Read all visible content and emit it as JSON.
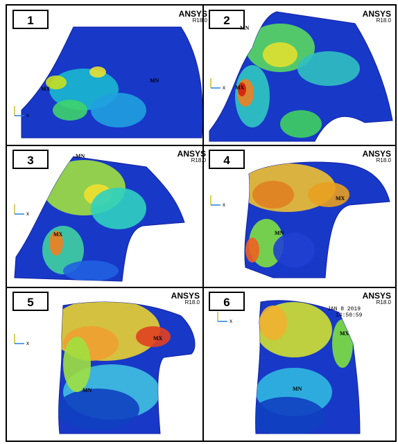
{
  "panels": [
    {
      "label": "1",
      "brand": "ANSYS",
      "version": "R18.0",
      "markers": [
        "MX",
        "MN"
      ],
      "axis": "x"
    },
    {
      "label": "2",
      "brand": "ANSYS",
      "version": "R18.0",
      "markers": [
        "MN",
        "MX"
      ],
      "axis": "x"
    },
    {
      "label": "3",
      "brand": "ANSYS",
      "version": "R18.0",
      "markers": [
        "MN",
        "MX"
      ],
      "axis": "x"
    },
    {
      "label": "4",
      "brand": "ANSYS",
      "version": "R18.0",
      "markers": [
        "MX",
        "MN"
      ],
      "axis": "x"
    },
    {
      "label": "5",
      "brand": "ANSYS",
      "version": "R18.0",
      "markers": [
        "MX",
        "MN"
      ],
      "axis": "x"
    },
    {
      "label": "6",
      "brand": "ANSYS",
      "version": "R18.0",
      "markers": [
        "MX",
        "MN"
      ],
      "axis": "x",
      "date": "JAN  8 2019",
      "time": "14:50:59"
    }
  ]
}
